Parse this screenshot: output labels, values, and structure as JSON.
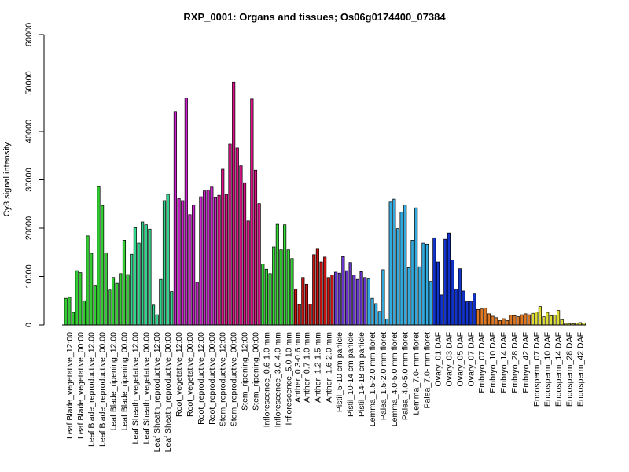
{
  "chart_data": {
    "type": "bar",
    "title": "RXP_0001: Organs and tissues; Os06g0174400_07384",
    "xlabel": "",
    "ylabel": "Cy3 signal intensity",
    "ylim": [
      0,
      60000
    ],
    "yticks": [
      0,
      10000,
      20000,
      30000,
      40000,
      50000,
      60000
    ],
    "grid": false,
    "legend": "none",
    "categories": [
      {
        "label": "Leaf Blade_vegetative_12:00",
        "color": "#33cc33",
        "values": [
          5500,
          5700,
          2600
        ]
      },
      {
        "label": "Leaf Blade_vegetative_00:00",
        "color": "#33cc33",
        "values": [
          11200,
          10800,
          5000
        ]
      },
      {
        "label": "Leaf Blade_reproductive_12:00",
        "color": "#33cc33",
        "values": [
          18400,
          14800,
          8200
        ]
      },
      {
        "label": "Leaf Blade_reproductive_00:00",
        "color": "#33cc33",
        "values": [
          28600,
          24700,
          14900
        ]
      },
      {
        "label": "Leaf Blade_ripening_12:00",
        "color": "#33cc33",
        "values": [
          7200,
          9800,
          8600
        ]
      },
      {
        "label": "Leaf Blade_ripening_00:00",
        "color": "#33cc33",
        "values": [
          10600,
          17500,
          10400
        ]
      },
      {
        "label": "Leaf Sheath_vegetative_12:00",
        "color": "#2ed58a",
        "values": [
          14600,
          20100,
          16900
        ]
      },
      {
        "label": "Leaf Sheath_vegetative_00:00",
        "color": "#2ed58a",
        "values": [
          21300,
          20700,
          19800
        ]
      },
      {
        "label": "Leaf Sheath_reproductive_12:00",
        "color": "#2ed58a",
        "values": [
          4100,
          2100,
          9400
        ]
      },
      {
        "label": "Leaf Sheath_reproductive_00:00",
        "color": "#2ed58a",
        "values": [
          25700,
          27000,
          6900
        ]
      },
      {
        "label": "Root_vegetative_12:00",
        "color": "#cc22cc",
        "values": [
          44100,
          26100,
          25700
        ]
      },
      {
        "label": "Root_vegetative_00:00",
        "color": "#cc22cc",
        "values": [
          46900,
          22800,
          24800
        ]
      },
      {
        "label": "Root_reproductive_12:00",
        "color": "#cc22cc",
        "values": [
          8800,
          26500,
          27700
        ]
      },
      {
        "label": "Root_reproductive_00:00",
        "color": "#cc22cc",
        "values": [
          27900,
          28500,
          26300
        ]
      },
      {
        "label": "Stem_reproductive_12:00",
        "color": "#dd1188",
        "values": [
          26800,
          32200,
          27000
        ]
      },
      {
        "label": "Stem_reproductive_00:00",
        "color": "#dd1188",
        "values": [
          37400,
          50200,
          36600
        ]
      },
      {
        "label": "Stem_ripening_12:00",
        "color": "#dd1188",
        "values": [
          32900,
          29400,
          21500
        ]
      },
      {
        "label": "Stem_ripening_00:00",
        "color": "#dd1188",
        "values": [
          46700,
          32000,
          25100
        ]
      },
      {
        "label": "Inflorescence_0.6-1.0 mm",
        "color": "#33dd33",
        "values": [
          12600,
          11500,
          10600
        ]
      },
      {
        "label": "Inflorescence_3.0-4.0 mm",
        "color": "#33dd33",
        "values": [
          16100,
          20800,
          15500
        ]
      },
      {
        "label": "Inflorescence_5.0-10 mm",
        "color": "#33dd33",
        "values": [
          20700,
          15500,
          13700
        ]
      },
      {
        "label": "Anther_0.3-0.6 mm",
        "color": "#cc1111",
        "values": [
          7400,
          4200
        ]
      },
      {
        "label": "Anther_0.7-1.0 mm",
        "color": "#cc1111",
        "values": [
          9800,
          8400,
          4300
        ]
      },
      {
        "label": "Anther_1.2-1.5 mm",
        "color": "#cc1111",
        "values": [
          14500,
          15800,
          13000
        ]
      },
      {
        "label": "Anther_1.6-2.0 mm",
        "color": "#cc1111",
        "values": [
          14000,
          9800,
          10300
        ]
      },
      {
        "label": "Pistil_5-10 cm panicle",
        "color": "#6633cc",
        "values": [
          10900,
          10700,
          14100
        ]
      },
      {
        "label": "Pistil_10-14 cm panicle",
        "color": "#6633cc",
        "values": [
          11200,
          12900,
          10300
        ]
      },
      {
        "label": "Pistil_14-18 cm panicle",
        "color": "#6633cc",
        "values": [
          9400,
          11000,
          9800
        ]
      },
      {
        "label": "Lemma_1.5-2.0 mm floret",
        "color": "#33aadd",
        "values": [
          9500,
          5500,
          4400
        ]
      },
      {
        "label": "Palea_1.5-2.0 mm floret",
        "color": "#33aadd",
        "values": [
          2800,
          11400,
          1200
        ]
      },
      {
        "label": "Lemma_4.0-5.0 mm floret",
        "color": "#33aadd",
        "values": [
          25400,
          26000,
          19900
        ]
      },
      {
        "label": "Palea_4.0-5.0 mm floret",
        "color": "#33aadd",
        "values": [
          23300,
          24800,
          11800
        ]
      },
      {
        "label": "Lemma_7.0- mm floret",
        "color": "#33aadd",
        "values": [
          17500,
          24200,
          12000
        ]
      },
      {
        "label": "Palea_7.0- mm floret",
        "color": "#33aadd",
        "values": [
          16900,
          16700,
          9000
        ]
      },
      {
        "label": "Ovary_01 DAF",
        "color": "#1133cc",
        "values": [
          18000,
          13000,
          6200
        ]
      },
      {
        "label": "Ovary_03 DAF",
        "color": "#1133cc",
        "values": [
          17700,
          19000,
          13400
        ]
      },
      {
        "label": "Ovary_05 DAF",
        "color": "#1133cc",
        "values": [
          7400,
          11600,
          7000
        ]
      },
      {
        "label": "Ovary_07 DAF",
        "color": "#1133cc",
        "values": [
          4800,
          4900,
          6400
        ]
      },
      {
        "label": "Embryo_07 DAF",
        "color": "#dd7722",
        "values": [
          3200,
          3300,
          3500
        ]
      },
      {
        "label": "Embryo_10 DAF",
        "color": "#dd7722",
        "values": [
          2300,
          1800,
          1500
        ]
      },
      {
        "label": "Embryo_14 DAF",
        "color": "#dd7722",
        "values": [
          900,
          1300,
          900
        ]
      },
      {
        "label": "Embryo_28 DAF",
        "color": "#dd7722",
        "values": [
          2000,
          1900,
          1700
        ]
      },
      {
        "label": "Embryo_42 DAF",
        "color": "#dd7722",
        "values": [
          2100,
          2300,
          2100
        ]
      },
      {
        "label": "Endosperm_07 DAF",
        "color": "#dddd33",
        "values": [
          2400,
          2700,
          3800
        ]
      },
      {
        "label": "Endosperm_10 DAF",
        "color": "#dddd33",
        "values": [
          1700,
          2600,
          1900
        ]
      },
      {
        "label": "Endosperm_14 DAF",
        "color": "#dddd33",
        "values": [
          2000,
          3000,
          1100
        ]
      },
      {
        "label": "Endosperm_28 DAF",
        "color": "#dddd33",
        "values": [
          350,
          300,
          250
        ]
      },
      {
        "label": "Endosperm_42 DAF",
        "color": "#dddd33",
        "values": [
          400,
          500,
          400
        ]
      }
    ]
  }
}
